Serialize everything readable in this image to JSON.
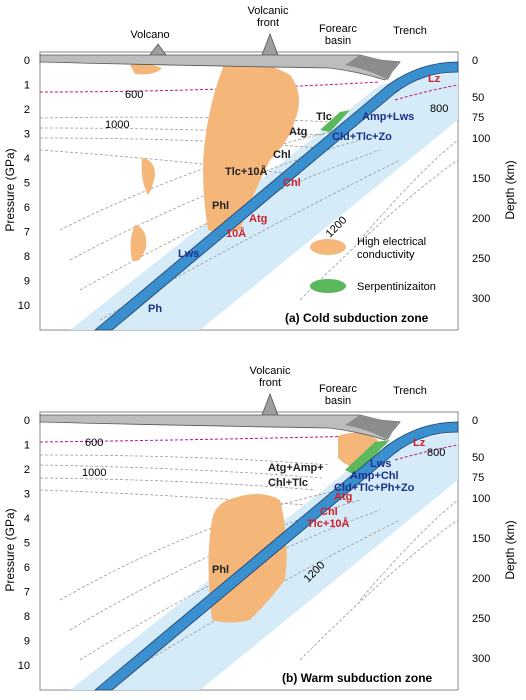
{
  "panels": [
    {
      "caption": "(a) Cold subduction zone",
      "top_labels": {
        "volcano": "Volcano",
        "volcanic_front": "Volcanic\nfront",
        "forearc_basin": "Forearc\nbasin",
        "trench": "Trench"
      },
      "isotherms": [
        "600",
        "1000",
        "1200",
        "800"
      ],
      "minerals": {
        "lz": "Lz",
        "amp_lws": "Amp+Lws",
        "tlc": "Tlc",
        "atg": "Atg",
        "cld_tlc_zo": "Cld+Tlc+Zo",
        "chl_black": "Chl",
        "tlc10a": "Tlc+10Å",
        "chl_red": "Chl",
        "phl": "Phl",
        "atg_red": "Atg",
        "a10": "10Å",
        "lws": "Lws",
        "ph": "Ph"
      },
      "legend": [
        {
          "label": "High electrical\nconductivity",
          "color": "#f5b779"
        },
        {
          "label": "Serpentinizaiton",
          "color": "#5cb85c"
        }
      ]
    },
    {
      "caption": "(b) Warm subduction zone",
      "top_labels": {
        "volcanic_front": "Volcanic\nfront",
        "forearc_basin": "Forearc\nbasin",
        "trench": "Trench"
      },
      "isotherms": [
        "600",
        "1000",
        "1200",
        "800"
      ],
      "minerals": {
        "lz": "Lz",
        "lws": "Lws",
        "amp_chl": "Amp+Chl",
        "cld_tlc_ph_zo": "Cld+Tlc+Ph+Zo",
        "atg_amp": "Atg+Amp+",
        "chl_tlc": "Chl+Tlc",
        "atg_red": "Atg",
        "chl_red": "Chl",
        "tlc10a": "Tlc+10Å",
        "phl": "Phl"
      }
    }
  ],
  "axes": {
    "left_label": "Pressure (GPa)",
    "right_label": "Depth (km)",
    "pressure_ticks": [
      "0",
      "1",
      "2",
      "3",
      "4",
      "5",
      "6",
      "7",
      "8",
      "9",
      "10"
    ],
    "depth_ticks": [
      "0",
      "50",
      "75",
      "100",
      "150",
      "200",
      "250",
      "300"
    ]
  },
  "colors": {
    "slab_blue": "#3a8fcf",
    "slab_light": "#d5ebf8",
    "crust_gray": "#8c8c8c",
    "conductivity": "#f5b779",
    "serpentinization": "#5cb85c",
    "mineral_blue": "#1a2f8a",
    "mineral_red": "#d0202a",
    "isotherm_magenta": "#c0187a"
  }
}
